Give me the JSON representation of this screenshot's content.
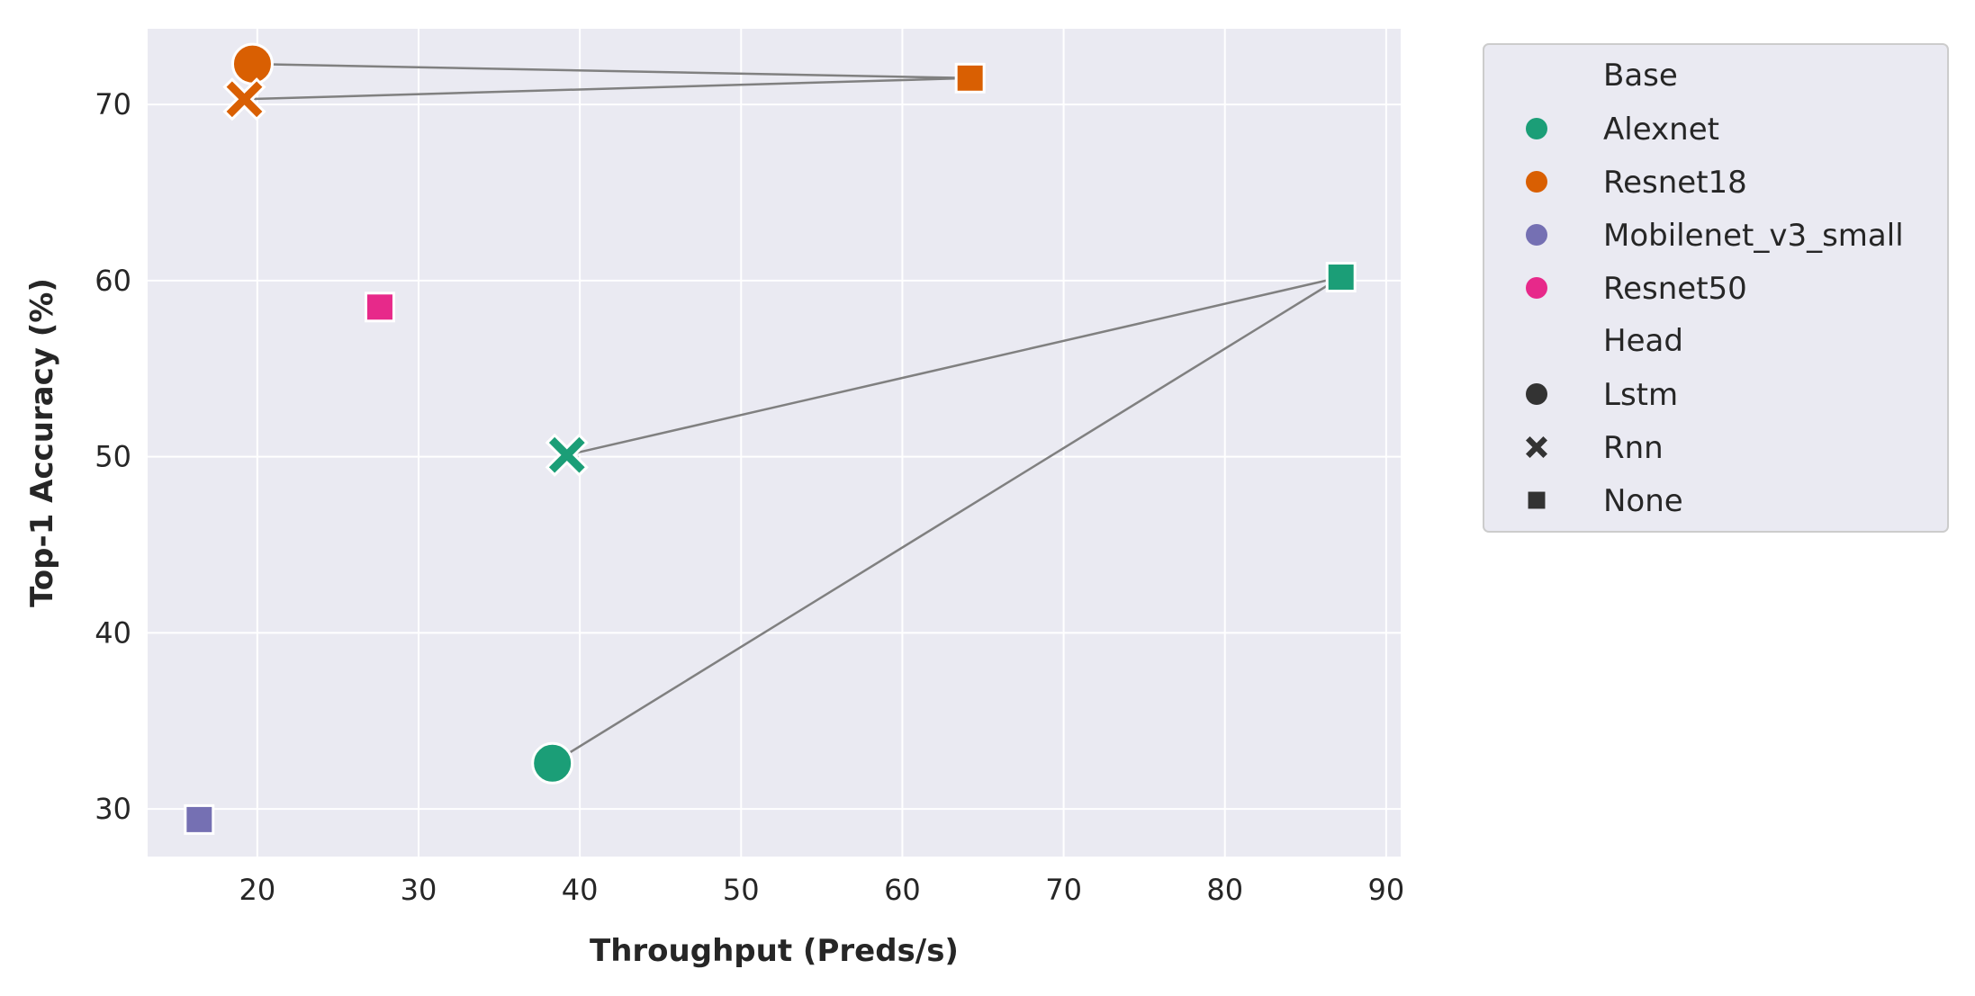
{
  "chart_data": {
    "type": "scatter",
    "title": "",
    "xlabel": "Throughput (Preds/s)",
    "ylabel": "Top-1 Accuracy (%)",
    "xlim": [
      13.2,
      90.9
    ],
    "ylim": [
      27.3,
      74.3
    ],
    "xticks": [
      20,
      30,
      40,
      50,
      60,
      70,
      80,
      90
    ],
    "yticks": [
      30,
      40,
      50,
      60,
      70
    ],
    "grid": true,
    "legend_position": "outside-right-top",
    "colors": {
      "Alexnet": "#1b9e77",
      "Resnet18": "#d95f02",
      "Mobilenet_v3_small": "#7570b3",
      "Resnet50": "#e7298a",
      "plot_background": "#eaeaf2",
      "arrow": "#808080"
    },
    "points": [
      {
        "base": "Alexnet",
        "head": "Lstm",
        "x": 38.3,
        "y": 32.6
      },
      {
        "base": "Alexnet",
        "head": "Rnn",
        "x": 39.2,
        "y": 50.1
      },
      {
        "base": "Alexnet",
        "head": "None",
        "x": 87.2,
        "y": 60.2
      },
      {
        "base": "Resnet18",
        "head": "Lstm",
        "x": 19.7,
        "y": 72.3
      },
      {
        "base": "Resnet18",
        "head": "Rnn",
        "x": 19.2,
        "y": 70.3
      },
      {
        "base": "Resnet18",
        "head": "None",
        "x": 64.2,
        "y": 71.5
      },
      {
        "base": "Mobilenet_v3_small",
        "head": "None",
        "x": 16.4,
        "y": 29.4
      },
      {
        "base": "Resnet50",
        "head": "None",
        "x": 27.6,
        "y": 58.5
      }
    ],
    "arrows": [
      {
        "from": [
          87.2,
          60.2
        ],
        "to": [
          39.2,
          50.1
        ]
      },
      {
        "from": [
          87.2,
          60.2
        ],
        "to": [
          38.3,
          32.6
        ]
      },
      {
        "from": [
          64.2,
          71.5
        ],
        "to": [
          19.7,
          72.3
        ]
      },
      {
        "from": [
          64.2,
          71.5
        ],
        "to": [
          19.2,
          70.3
        ]
      }
    ],
    "legend": {
      "base_title": "Base",
      "base_items": [
        "Alexnet",
        "Resnet18",
        "Mobilenet_v3_small",
        "Resnet50"
      ],
      "head_title": "Head",
      "head_items": [
        {
          "label": "Lstm",
          "marker": "circle"
        },
        {
          "label": "Rnn",
          "marker": "x"
        },
        {
          "label": "None",
          "marker": "square"
        }
      ]
    }
  }
}
